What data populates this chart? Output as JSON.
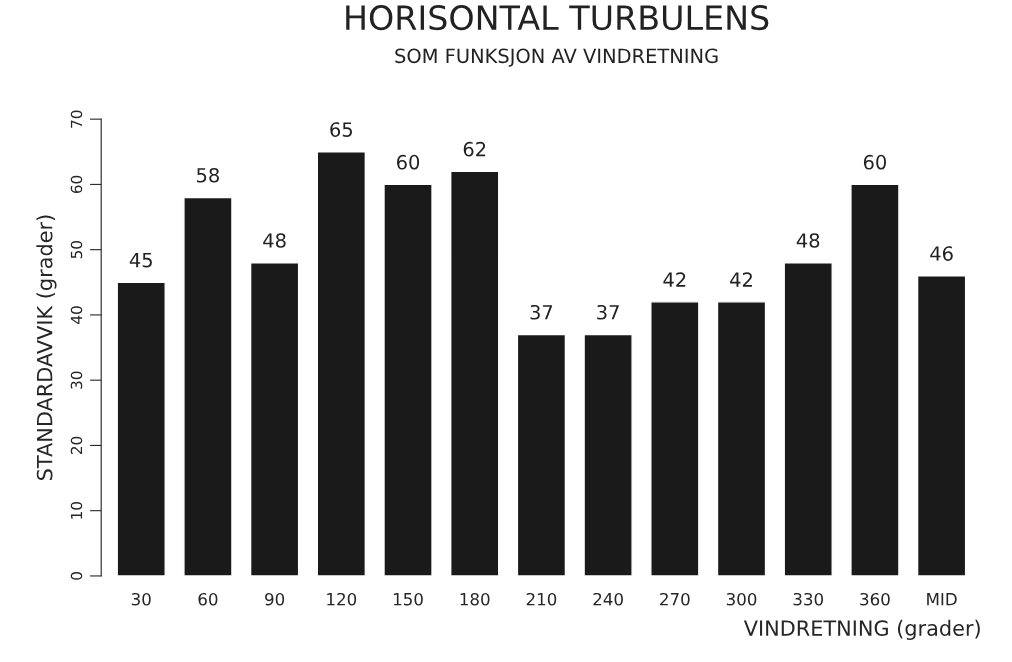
{
  "chart_data": {
    "type": "bar",
    "title": "HORISONTAL TURBULENS",
    "subtitle": "SOM FUNKSJON AV VINDRETNING",
    "xlabel": "VINDRETNING (grader)",
    "ylabel": "STANDARDAVVIK (grader)",
    "categories": [
      "30",
      "60",
      "90",
      "120",
      "150",
      "180",
      "210",
      "240",
      "270",
      "300",
      "330",
      "360",
      "MID"
    ],
    "values": [
      45,
      58,
      48,
      65,
      60,
      62,
      37,
      37,
      42,
      42,
      48,
      60,
      46
    ],
    "color": "#1a1a1a",
    "ylim": [
      0,
      70
    ],
    "yticks": [
      0,
      10,
      20,
      30,
      40,
      50,
      60,
      70
    ],
    "data_labels": true,
    "grid": false
  }
}
